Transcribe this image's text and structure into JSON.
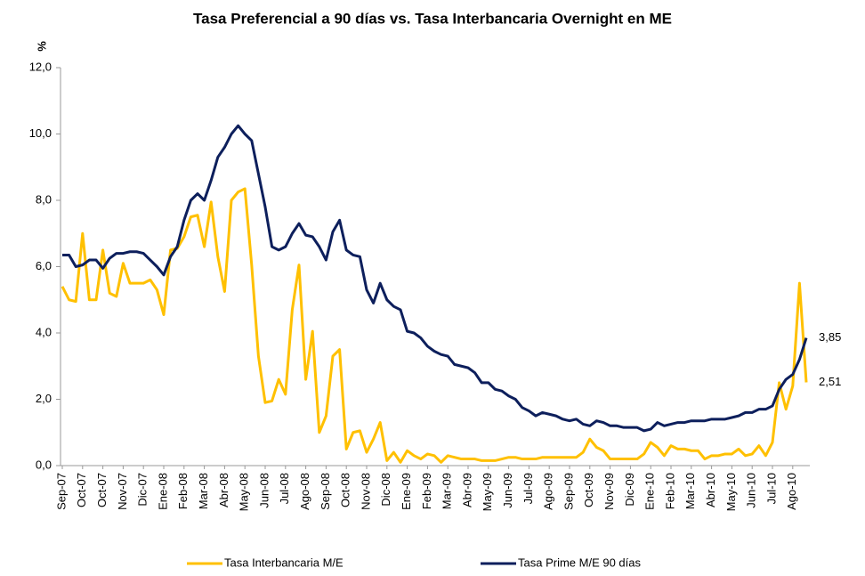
{
  "chart_data": {
    "type": "line",
    "title": "Tasa Preferencial  a 90 días vs. Tasa Interbancaria  Overnight  en ME",
    "ylabel": "%",
    "ylim": [
      0,
      12
    ],
    "yticks": [
      {
        "value": 0,
        "label": "0,0"
      },
      {
        "value": 2,
        "label": "2,0"
      },
      {
        "value": 4,
        "label": "4,0"
      },
      {
        "value": 6,
        "label": "6,0"
      },
      {
        "value": 8,
        "label": "8,0"
      },
      {
        "value": 10,
        "label": "10,0"
      },
      {
        "value": 12,
        "label": "12,0"
      }
    ],
    "categories": [
      "Sep-07",
      null,
      null,
      "Oct-07",
      null,
      null,
      "Oct-07",
      null,
      null,
      "Nov-07",
      null,
      null,
      "Dic-07",
      null,
      null,
      "Ene-08",
      null,
      null,
      "Feb-08",
      null,
      null,
      "Mar-08",
      null,
      null,
      "Abr-08",
      null,
      null,
      "May-08",
      null,
      null,
      "Jun-08",
      null,
      null,
      "Jul-08",
      null,
      null,
      "Ago-08",
      null,
      null,
      "Sep-08",
      null,
      null,
      "Oct-08",
      null,
      null,
      "Nov-08",
      null,
      null,
      "Dic-08",
      null,
      null,
      "Ene-09",
      null,
      null,
      "Feb-09",
      null,
      null,
      "Mar-09",
      null,
      null,
      "Abr-09",
      null,
      null,
      "May-09",
      null,
      null,
      "Jun-09",
      null,
      null,
      "Jul-09",
      null,
      null,
      "Ago-09",
      null,
      null,
      "Sep-09",
      null,
      null,
      "Oct-09",
      null,
      null,
      "Nov-09",
      null,
      null,
      "Dic-09",
      null,
      null,
      "Ene-10",
      null,
      null,
      "Feb-10",
      null,
      null,
      "Mar-10",
      null,
      null,
      "Abr-10",
      null,
      null,
      "May-10",
      null,
      null,
      "Jun-10",
      null,
      null,
      "Jul-10",
      null,
      null,
      "Ago-10",
      null,
      null
    ],
    "series": [
      {
        "name": "Tasa Interbancaria  M/E",
        "color": "#FFC000",
        "values": [
          5.4,
          5.0,
          4.95,
          7.0,
          5.0,
          5.0,
          6.5,
          5.2,
          5.1,
          6.1,
          5.5,
          5.5,
          5.5,
          5.6,
          5.3,
          4.55,
          6.5,
          6.55,
          6.9,
          7.5,
          7.55,
          6.6,
          7.95,
          6.3,
          5.25,
          8.0,
          8.25,
          8.35,
          6.05,
          3.3,
          1.9,
          1.95,
          2.6,
          2.15,
          4.7,
          6.05,
          2.6,
          4.05,
          1.0,
          1.5,
          3.3,
          3.5,
          0.5,
          1.0,
          1.05,
          0.4,
          0.8,
          1.3,
          0.15,
          0.4,
          0.1,
          0.45,
          0.3,
          0.2,
          0.35,
          0.3,
          0.1,
          0.3,
          0.25,
          0.2,
          0.2,
          0.2,
          0.15,
          0.15,
          0.15,
          0.2,
          0.25,
          0.25,
          0.2,
          0.2,
          0.2,
          0.25,
          0.25,
          0.25,
          0.25,
          0.25,
          0.25,
          0.4,
          0.8,
          0.55,
          0.45,
          0.2,
          0.2,
          0.2,
          0.2,
          0.2,
          0.35,
          0.7,
          0.55,
          0.3,
          0.6,
          0.5,
          0.5,
          0.45,
          0.45,
          0.2,
          0.3,
          0.3,
          0.35,
          0.35,
          0.5,
          0.3,
          0.35,
          0.6,
          0.3,
          0.7,
          2.5,
          1.7,
          2.4,
          5.5,
          2.51
        ],
        "value_labels": [
          null,
          null,
          null,
          null,
          null,
          null,
          null,
          null,
          null,
          null,
          null,
          null,
          null,
          null,
          null,
          null,
          null,
          null,
          null,
          null,
          null,
          null,
          null,
          null,
          null,
          null,
          null,
          null,
          null,
          null,
          null,
          null,
          null,
          null,
          null,
          null,
          null,
          null,
          null,
          null,
          null,
          null,
          null,
          null,
          null,
          null,
          null,
          null,
          null,
          null,
          null,
          null,
          null,
          null,
          null,
          null,
          null,
          null,
          null,
          null,
          null,
          null,
          null,
          null,
          null,
          null,
          null,
          null,
          null,
          null,
          null,
          null,
          null,
          null,
          null,
          null,
          null,
          null,
          null,
          null,
          null,
          null,
          null,
          null,
          null,
          null,
          null,
          null,
          null,
          null,
          null,
          null,
          null,
          null,
          null,
          null,
          null,
          null,
          null,
          null,
          null,
          null,
          null,
          null,
          null,
          null,
          null,
          null,
          null,
          null,
          "2,51"
        ]
      },
      {
        "name": "Tasa Prime M/E 90 días",
        "color": "#0D1F5C",
        "values": [
          6.35,
          6.35,
          6.0,
          6.05,
          6.2,
          6.2,
          5.95,
          6.25,
          6.4,
          6.4,
          6.45,
          6.45,
          6.4,
          6.2,
          6.0,
          5.75,
          6.3,
          6.6,
          7.4,
          8.0,
          8.2,
          8.0,
          8.6,
          9.3,
          9.6,
          10.0,
          10.25,
          10.0,
          9.8,
          8.8,
          7.8,
          6.6,
          6.5,
          6.6,
          7.0,
          7.3,
          6.95,
          6.9,
          6.6,
          6.2,
          7.05,
          7.4,
          6.5,
          6.35,
          6.3,
          5.3,
          4.9,
          5.5,
          5.0,
          4.8,
          4.7,
          4.05,
          4.0,
          3.85,
          3.6,
          3.45,
          3.35,
          3.3,
          3.05,
          3.0,
          2.95,
          2.8,
          2.5,
          2.5,
          2.3,
          2.25,
          2.1,
          2.0,
          1.75,
          1.65,
          1.5,
          1.6,
          1.55,
          1.5,
          1.4,
          1.35,
          1.4,
          1.25,
          1.2,
          1.35,
          1.3,
          1.2,
          1.2,
          1.15,
          1.15,
          1.15,
          1.05,
          1.1,
          1.3,
          1.2,
          1.25,
          1.3,
          1.3,
          1.35,
          1.35,
          1.35,
          1.4,
          1.4,
          1.4,
          1.45,
          1.5,
          1.6,
          1.6,
          1.7,
          1.7,
          1.8,
          2.3,
          2.6,
          2.75,
          3.2,
          3.85
        ],
        "value_labels": [
          null,
          null,
          null,
          null,
          null,
          null,
          null,
          null,
          null,
          null,
          null,
          null,
          null,
          null,
          null,
          null,
          null,
          null,
          null,
          null,
          null,
          null,
          null,
          null,
          null,
          null,
          null,
          null,
          null,
          null,
          null,
          null,
          null,
          null,
          null,
          null,
          null,
          null,
          null,
          null,
          null,
          null,
          null,
          null,
          null,
          null,
          null,
          null,
          null,
          null,
          null,
          null,
          null,
          null,
          null,
          null,
          null,
          null,
          null,
          null,
          null,
          null,
          null,
          null,
          null,
          null,
          null,
          null,
          null,
          null,
          null,
          null,
          null,
          null,
          null,
          null,
          null,
          null,
          null,
          null,
          null,
          null,
          null,
          null,
          null,
          null,
          null,
          null,
          null,
          null,
          null,
          null,
          null,
          null,
          null,
          null,
          null,
          null,
          null,
          null,
          null,
          null,
          null,
          null,
          null,
          null,
          null,
          null,
          null,
          null,
          "3,85"
        ]
      }
    ],
    "legend": "bottom"
  }
}
